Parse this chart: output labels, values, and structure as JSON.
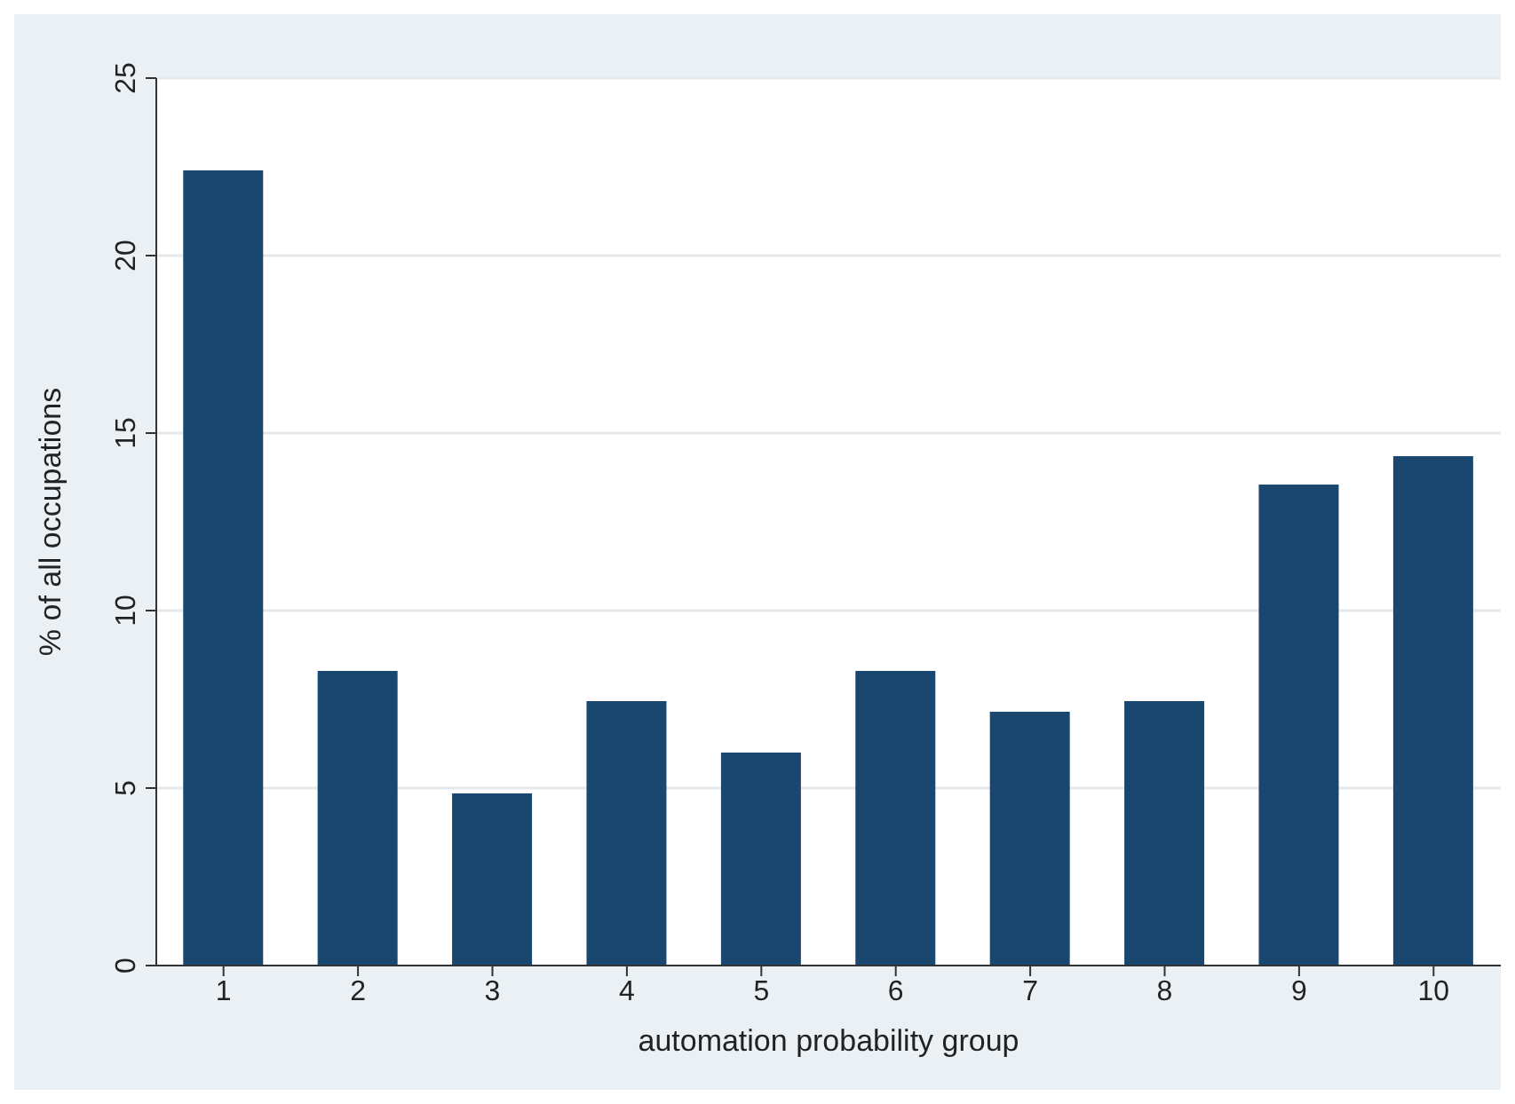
{
  "chart_data": {
    "type": "bar",
    "xlabel": "automation probability group",
    "ylabel": "% of all occupations",
    "categories": [
      "1",
      "2",
      "3",
      "4",
      "5",
      "6",
      "7",
      "8",
      "9",
      "10"
    ],
    "values": [
      22.4,
      8.3,
      4.85,
      7.45,
      6.0,
      8.3,
      7.15,
      7.45,
      13.55,
      14.35
    ],
    "color": "#1a476f",
    "ylim": [
      0,
      25
    ],
    "yticks": [
      0,
      5,
      10,
      15,
      20,
      25
    ],
    "grid": "y"
  }
}
